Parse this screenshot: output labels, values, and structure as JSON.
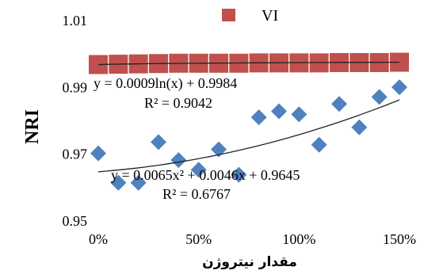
{
  "chart_data": {
    "type": "scatter",
    "title": "",
    "ylabel": "NRI",
    "xlabel": "مقدار نیتروژن",
    "x_ticks": [
      0,
      0.5,
      1.0,
      1.5
    ],
    "x_tick_labels": [
      "0%",
      "50%",
      "100%",
      "150%"
    ],
    "y_ticks": [
      0.95,
      0.97,
      0.99,
      1.01
    ],
    "y_tick_labels": [
      "0.95",
      "0.97",
      "0.99",
      "1.01"
    ],
    "xlim": [
      0,
      1.5
    ],
    "ylim": [
      0.95,
      1.01
    ],
    "grid": false,
    "legend": {
      "position": "top-center",
      "entries": [
        "VI"
      ]
    },
    "series": [
      {
        "name": "VI",
        "marker": "square",
        "color": "#c0504d",
        "x": [
          0,
          0.1,
          0.2,
          0.3,
          0.4,
          0.5,
          0.6,
          0.7,
          0.8,
          0.9,
          1.0,
          1.1,
          1.2,
          1.3,
          1.4,
          1.5
        ],
        "y": [
          0.9966,
          0.9967,
          0.9968,
          0.9969,
          0.997,
          0.997,
          0.997,
          0.997,
          0.9971,
          0.9971,
          0.9971,
          0.9971,
          0.9972,
          0.9972,
          0.9972,
          0.9973
        ],
        "trendline": {
          "type": "log",
          "equation": "y = 0.0009ln(x) + 0.9984",
          "r2": "R² = 0.9042"
        }
      },
      {
        "name": "",
        "marker": "diamond",
        "color": "#4f81bd",
        "x": [
          0,
          0.1,
          0.2,
          0.3,
          0.4,
          0.5,
          0.6,
          0.7,
          0.8,
          0.9,
          1.0,
          1.1,
          1.2,
          1.3,
          1.4,
          1.5
        ],
        "y": [
          0.97,
          0.9612,
          0.9612,
          0.9734,
          0.968,
          0.9651,
          0.9712,
          0.9636,
          0.9808,
          0.9826,
          0.9817,
          0.9726,
          0.9848,
          0.9778,
          0.9869,
          0.9898
        ],
        "trendline": {
          "type": "poly2",
          "equation": "y = 0.0065x² + 0.0046x + 0.9645",
          "r2": "R² = 0.6767"
        }
      }
    ]
  }
}
